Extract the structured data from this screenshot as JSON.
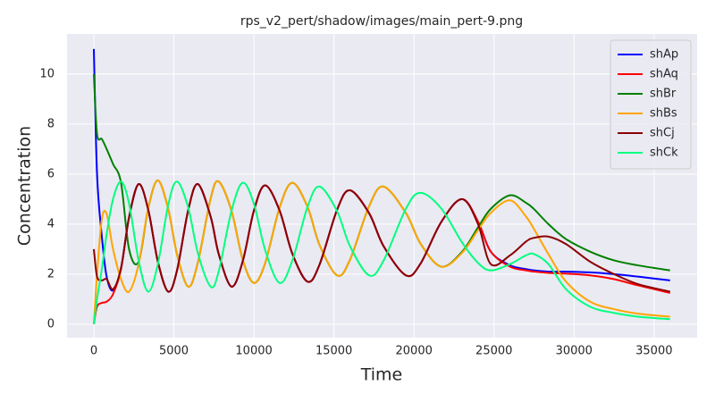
{
  "chart_data": {
    "type": "line",
    "title": "rps_v2_pert/shadow/images/main_pert-9.png",
    "xlabel": "Time",
    "ylabel": "Concentration",
    "x": [
      0,
      200,
      500,
      800,
      1200,
      1700,
      2200,
      2800,
      3400,
      4000,
      4650,
      5200,
      5900,
      6500,
      7300,
      7800,
      8600,
      9300,
      10000,
      10700,
      11600,
      12400,
      13350,
      14100,
      15200,
      16000,
      17200,
      18100,
      19500,
      20400,
      21700,
      23000,
      24000,
      24800,
      26000,
      27000,
      27500,
      28400,
      29500,
      31000,
      32500,
      34000,
      36000
    ],
    "series": [
      {
        "name": "shAp",
        "color": "#0000ff",
        "values": [
          11,
          6.0,
          3.5,
          1.9,
          1.35,
          2.25,
          4.27,
          5.6,
          4.57,
          2.5,
          1.3,
          2.16,
          4.57,
          5.6,
          4.29,
          2.81,
          1.5,
          2.51,
          4.54,
          5.55,
          4.55,
          2.82,
          1.7,
          2.38,
          4.58,
          5.35,
          4.43,
          3.12,
          1.95,
          2.41,
          4.08,
          5.0,
          4.1,
          2.9,
          2.35,
          2.2,
          2.15,
          2.1,
          2.1,
          2.07,
          2.0,
          1.9,
          1.75
        ]
      },
      {
        "name": "shAq",
        "color": "#ff0000",
        "values": [
          0,
          0.7,
          0.85,
          0.9,
          1.2,
          2.2,
          4.27,
          5.6,
          4.57,
          2.5,
          1.3,
          2.16,
          4.57,
          5.6,
          4.29,
          2.81,
          1.5,
          2.51,
          4.54,
          5.55,
          4.55,
          2.82,
          1.7,
          2.38,
          4.58,
          5.35,
          4.43,
          3.12,
          1.95,
          2.41,
          4.08,
          5.0,
          4.1,
          2.9,
          2.3,
          2.15,
          2.1,
          2.05,
          2.02,
          1.95,
          1.8,
          1.55,
          1.25
        ]
      },
      {
        "name": "shBr",
        "color": "#008000",
        "values": [
          10,
          7.6,
          7.4,
          7.0,
          6.4,
          5.65,
          3.0,
          2.5,
          4.64,
          5.75,
          4.6,
          2.78,
          1.5,
          2.47,
          5.03,
          5.7,
          4.53,
          2.58,
          1.65,
          2.43,
          4.65,
          5.65,
          4.69,
          3.17,
          1.95,
          2.57,
          4.72,
          5.5,
          4.44,
          3.23,
          2.3,
          2.89,
          3.87,
          4.61,
          5.15,
          4.85,
          4.6,
          4.0,
          3.4,
          2.9,
          2.55,
          2.35,
          2.15
        ]
      },
      {
        "name": "shBs",
        "color": "#ffa500",
        "values": [
          0,
          2.0,
          4.2,
          4.4,
          3.0,
          1.8,
          1.3,
          2.4,
          4.64,
          5.75,
          4.6,
          2.78,
          1.5,
          2.47,
          5.03,
          5.7,
          4.53,
          2.58,
          1.65,
          2.43,
          4.65,
          5.65,
          4.69,
          3.17,
          1.95,
          2.57,
          4.72,
          5.5,
          4.44,
          3.23,
          2.3,
          2.85,
          3.76,
          4.45,
          4.95,
          4.3,
          3.8,
          2.8,
          1.7,
          0.9,
          0.6,
          0.42,
          0.3
        ]
      },
      {
        "name": "shCj",
        "color": "#8b0000",
        "values": [
          3,
          1.9,
          1.75,
          1.8,
          1.4,
          2.25,
          4.27,
          5.6,
          4.57,
          2.5,
          1.3,
          2.16,
          4.57,
          5.6,
          4.29,
          2.81,
          1.5,
          2.51,
          4.54,
          5.55,
          4.55,
          2.82,
          1.7,
          2.38,
          4.58,
          5.35,
          4.43,
          3.12,
          1.95,
          2.41,
          4.08,
          5.0,
          4.0,
          2.4,
          2.75,
          3.3,
          3.45,
          3.5,
          3.2,
          2.5,
          2.0,
          1.6,
          1.3
        ]
      },
      {
        "name": "shCk",
        "color": "#00ff7f",
        "values": [
          0,
          1.0,
          2.2,
          3.6,
          5.0,
          5.7,
          4.82,
          2.53,
          1.3,
          2.4,
          4.78,
          5.7,
          4.65,
          2.84,
          1.5,
          2.11,
          4.53,
          5.65,
          4.81,
          2.97,
          1.65,
          2.54,
          4.69,
          5.5,
          4.51,
          3.12,
          1.95,
          2.54,
          4.62,
          5.25,
          4.63,
          3.27,
          2.45,
          2.15,
          2.4,
          2.75,
          2.8,
          2.4,
          1.4,
          0.7,
          0.45,
          0.3,
          0.2
        ]
      }
    ],
    "xlim": [
      -1675,
      37690
    ],
    "ylim": [
      -0.54,
      11.6
    ],
    "xticks": [
      0,
      5000,
      10000,
      15000,
      20000,
      25000,
      30000,
      35000
    ],
    "yticks": [
      0,
      2,
      4,
      6,
      8,
      10
    ],
    "grid": true,
    "legend": "upper right",
    "background": "#eaeaf2"
  }
}
